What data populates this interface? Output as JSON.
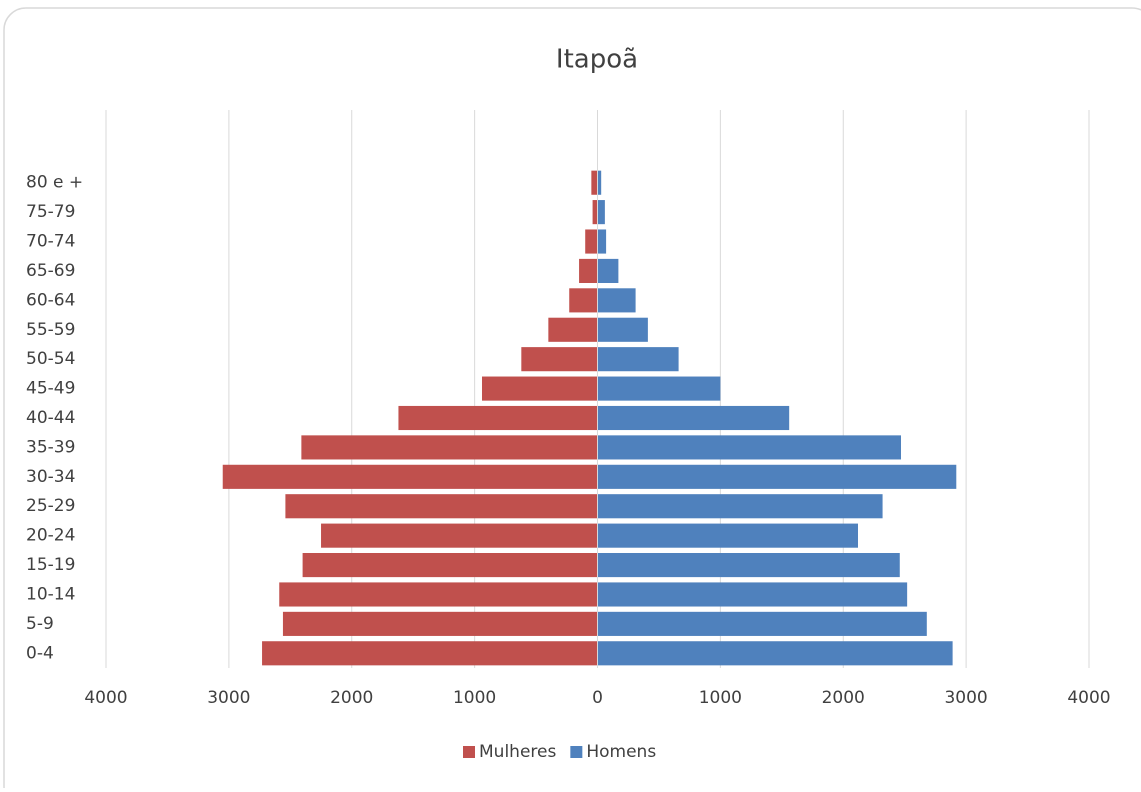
{
  "chart_data": {
    "type": "bar",
    "orientation": "horizontal",
    "stacked": true,
    "title": "Itapoã",
    "categories": [
      "0-4",
      "5-9",
      "10-14",
      "15-19",
      "20-24",
      "25-29",
      "30-34",
      "35-39",
      "40-44",
      "45-49",
      "50-54",
      "55-59",
      "60-64",
      "65-69",
      "70-74",
      "75-79",
      "80 e +"
    ],
    "series": [
      {
        "name": "Mulheres",
        "color": "#c0504d",
        "values": [
          -2730,
          -2560,
          -2590,
          -2400,
          -2250,
          -2540,
          -3050,
          -2410,
          -1620,
          -940,
          -620,
          -400,
          -230,
          -150,
          -100,
          -40,
          -50
        ]
      },
      {
        "name": "Homens",
        "color": "#4f81bd",
        "values": [
          2890,
          2680,
          2520,
          2460,
          2120,
          2320,
          2920,
          2470,
          1560,
          1000,
          660,
          410,
          310,
          170,
          70,
          60,
          30
        ]
      }
    ],
    "xlim": [
      -4000,
      4000
    ],
    "xticks": [
      {
        "value": -4000,
        "label": "4000"
      },
      {
        "value": -3000,
        "label": "3000"
      },
      {
        "value": -2000,
        "label": "2000"
      },
      {
        "value": -1000,
        "label": "1000"
      },
      0,
      1000,
      2000,
      3000,
      4000
    ],
    "grid": true,
    "legend": "bottom"
  }
}
